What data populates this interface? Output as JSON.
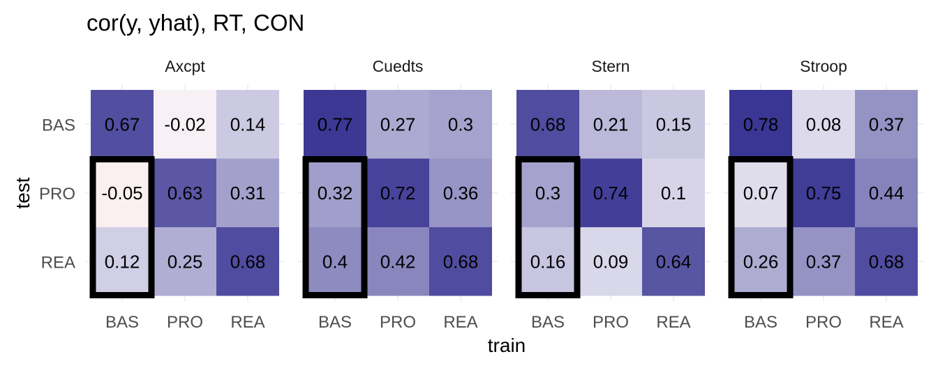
{
  "chart_data": {
    "type": "heatmap",
    "title": "cor(y, yhat), RT, CON",
    "xlabel": "train",
    "ylabel": "test",
    "x_categories": [
      "BAS",
      "PRO",
      "REA"
    ],
    "y_categories": [
      "BAS",
      "PRO",
      "REA"
    ],
    "value_range": [
      -0.05,
      0.78
    ],
    "color_low": "#fbf0f0",
    "color_mid": "#f4f2f8",
    "color_high": "#3a3693",
    "highlight_color": "#000000",
    "highlighted_column": "BAS",
    "highlighted_rows": [
      "PRO",
      "REA"
    ],
    "panels": [
      {
        "name": "Axcpt",
        "values": [
          [
            0.67,
            -0.02,
            0.14
          ],
          [
            -0.05,
            0.63,
            0.31
          ],
          [
            0.12,
            0.25,
            0.68
          ]
        ],
        "labels": [
          [
            "0.67",
            "-0.02",
            "0.14"
          ],
          [
            "-0.05",
            "0.63",
            "0.31"
          ],
          [
            "0.12",
            "0.25",
            "0.68"
          ]
        ]
      },
      {
        "name": "Cuedts",
        "values": [
          [
            0.77,
            0.27,
            0.3
          ],
          [
            0.32,
            0.72,
            0.36
          ],
          [
            0.4,
            0.42,
            0.68
          ]
        ],
        "labels": [
          [
            "0.77",
            "0.27",
            "0.3"
          ],
          [
            "0.32",
            "0.72",
            "0.36"
          ],
          [
            "0.4",
            "0.42",
            "0.68"
          ]
        ]
      },
      {
        "name": "Stern",
        "values": [
          [
            0.68,
            0.21,
            0.15
          ],
          [
            0.3,
            0.74,
            0.1
          ],
          [
            0.16,
            0.09,
            0.64
          ]
        ],
        "labels": [
          [
            "0.68",
            "0.21",
            "0.15"
          ],
          [
            "0.3",
            "0.74",
            "0.1"
          ],
          [
            "0.16",
            "0.09",
            "0.64"
          ]
        ]
      },
      {
        "name": "Stroop",
        "values": [
          [
            0.78,
            0.08,
            0.37
          ],
          [
            0.07,
            0.75,
            0.44
          ],
          [
            0.26,
            0.37,
            0.68
          ]
        ],
        "labels": [
          [
            "0.78",
            "0.08",
            "0.37"
          ],
          [
            "0.07",
            "0.75",
            "0.44"
          ],
          [
            "0.26",
            "0.37",
            "0.68"
          ]
        ]
      }
    ]
  }
}
